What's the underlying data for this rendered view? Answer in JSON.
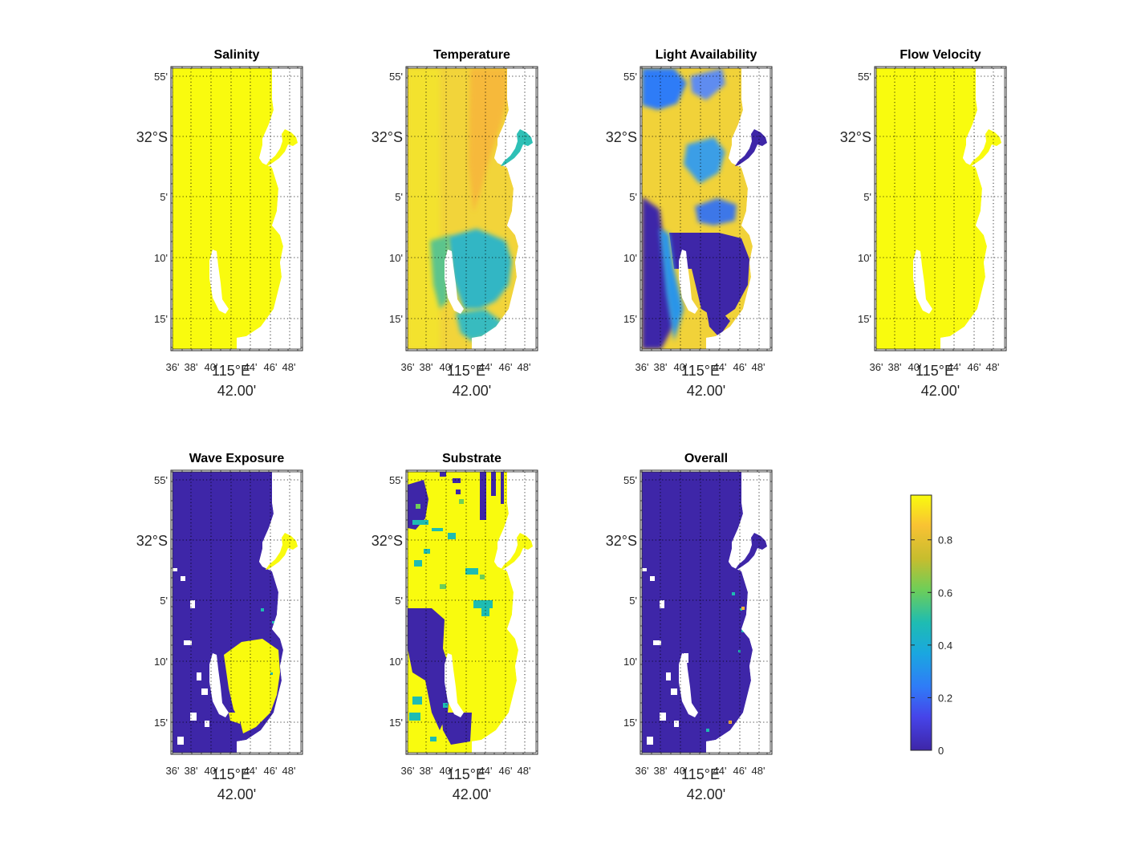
{
  "colors": {
    "low": "#3e26a8",
    "blue": "#2f7cf7",
    "teal": "#1ebcb2",
    "green": "#6ece58",
    "orange": "#f9b639",
    "high": "#f9fb0e",
    "land": "#ffffff",
    "grid": "#000000"
  },
  "latitude_tick_labels": [
    "55'",
    "32°S",
    "5'",
    "10'",
    "15'"
  ],
  "longitude_tick_labels": [
    "36'",
    "38'",
    "40'",
    "115°E",
    "44'",
    "46'",
    "48'"
  ],
  "longitude_extra_label": "42.00'",
  "colorbar": {
    "ticks": [
      "0",
      "0.2",
      "0.4",
      "0.6",
      "0.8"
    ],
    "range": [
      0,
      0.97
    ]
  },
  "chart_data": [
    {
      "type": "heatmap",
      "title": "Salinity",
      "summary_value_range": [
        0.97,
        0.97
      ],
      "dominant_value": 0.97
    },
    {
      "type": "heatmap",
      "title": "Temperature",
      "summary_value_range": [
        0.35,
        0.9
      ],
      "dominant_value": 0.85
    },
    {
      "type": "heatmap",
      "title": "Light Availability",
      "summary_value_range": [
        0,
        0.97
      ],
      "dominant_value": 0.05
    },
    {
      "type": "heatmap",
      "title": "Flow Velocity",
      "summary_value_range": [
        0.97,
        0.97
      ],
      "dominant_value": 0.97
    },
    {
      "type": "heatmap",
      "title": "Wave Exposure",
      "summary_value_range": [
        0,
        0.97
      ],
      "dominant_value": 0.02
    },
    {
      "type": "heatmap",
      "title": "Substrate",
      "summary_value_range": [
        0,
        0.97
      ],
      "dominant_value": 0.97
    },
    {
      "type": "heatmap",
      "title": "Overall",
      "summary_value_range": [
        0,
        0.9
      ],
      "dominant_value": 0.02
    }
  ]
}
